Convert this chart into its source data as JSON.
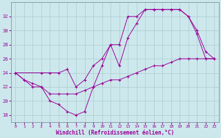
{
  "xlabel": "Windchill (Refroidissement éolien,°C)",
  "bg_color": "#cde8ec",
  "line_color": "#990099",
  "grid_color": "#b0d0d4",
  "xlim": [
    -0.5,
    23.5
  ],
  "ylim": [
    17,
    34
  ],
  "yticks": [
    18,
    20,
    22,
    24,
    26,
    28,
    30,
    32
  ],
  "xticks": [
    0,
    1,
    2,
    3,
    4,
    5,
    6,
    7,
    8,
    9,
    10,
    11,
    12,
    13,
    14,
    15,
    16,
    17,
    18,
    19,
    20,
    21,
    22,
    23
  ],
  "line1_x": [
    0,
    1,
    2,
    3,
    4,
    5,
    6,
    7,
    8,
    9,
    10,
    11,
    12,
    13,
    14,
    15,
    16,
    17,
    18,
    19,
    20,
    21,
    22,
    23
  ],
  "line1_y": [
    24,
    23,
    22.5,
    22,
    20,
    19.5,
    18.5,
    18,
    18.5,
    22,
    25,
    28,
    25,
    29,
    31,
    33,
    33,
    33,
    33,
    33,
    32,
    30,
    27,
    26
  ],
  "line2_x": [
    0,
    3,
    4,
    5,
    6,
    7,
    8,
    9,
    10,
    11,
    12,
    13,
    14,
    15,
    16,
    17,
    18,
    19,
    20,
    21,
    22,
    23
  ],
  "line2_y": [
    24,
    24,
    24,
    24,
    24.5,
    22,
    23,
    25,
    26,
    28,
    28,
    32,
    32,
    33,
    33,
    33,
    33,
    33,
    32,
    29.5,
    26,
    26
  ],
  "line3_x": [
    0,
    1,
    2,
    3,
    4,
    5,
    6,
    7,
    8,
    9,
    10,
    11,
    12,
    13,
    14,
    15,
    16,
    17,
    18,
    19,
    20,
    21,
    22,
    23
  ],
  "line3_y": [
    24,
    23,
    22,
    22,
    21,
    21,
    21,
    21,
    21.5,
    22,
    22.5,
    23,
    23,
    23.5,
    24,
    24.5,
    25,
    25,
    25.5,
    26,
    26,
    26,
    26,
    26
  ]
}
